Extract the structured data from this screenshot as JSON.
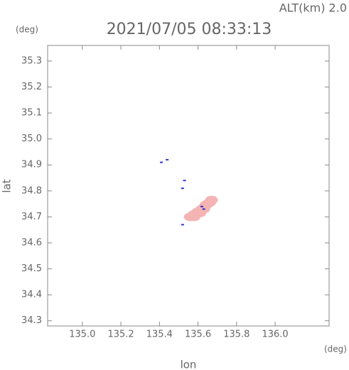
{
  "chart_data": {
    "type": "scatter",
    "title": "2021/07/05 08:33:13",
    "subtitle": "ALT(km) 2.0",
    "x_label": "lon",
    "y_label": "lat",
    "x_unit": "(deg)",
    "y_unit": "(deg)",
    "xlim": [
      134.82,
      136.28
    ],
    "ylim": [
      34.28,
      35.36
    ],
    "xticks": [
      {
        "value": 135,
        "label": "135.0"
      },
      135.2,
      135.4,
      135.6,
      135.8,
      {
        "value": 136,
        "label": "136.0"
      }
    ],
    "yticks": [
      34.3,
      34.4,
      34.5,
      34.6,
      34.7,
      34.8,
      34.9,
      {
        "value": 35,
        "label": "35.0"
      },
      35.1,
      35.2,
      35.3
    ],
    "series": [
      {
        "color": "#f4b4b4",
        "x": [
          135.56,
          135.58,
          135.6,
          135.62,
          135.64,
          135.66,
          135.67,
          135.58,
          135.61,
          135.63,
          135.65
        ],
        "values": [
          34.7,
          34.71,
          34.72,
          34.73,
          34.745,
          34.755,
          34.765,
          34.7,
          34.715,
          34.73,
          34.75
        ]
      },
      {
        "color": "#3333cc",
        "x": [
          135.41,
          135.44,
          135.52,
          135.53,
          135.52,
          135.62,
          135.63
        ],
        "values": [
          34.91,
          34.92,
          34.81,
          34.84,
          34.67,
          34.74,
          34.73
        ]
      }
    ]
  }
}
